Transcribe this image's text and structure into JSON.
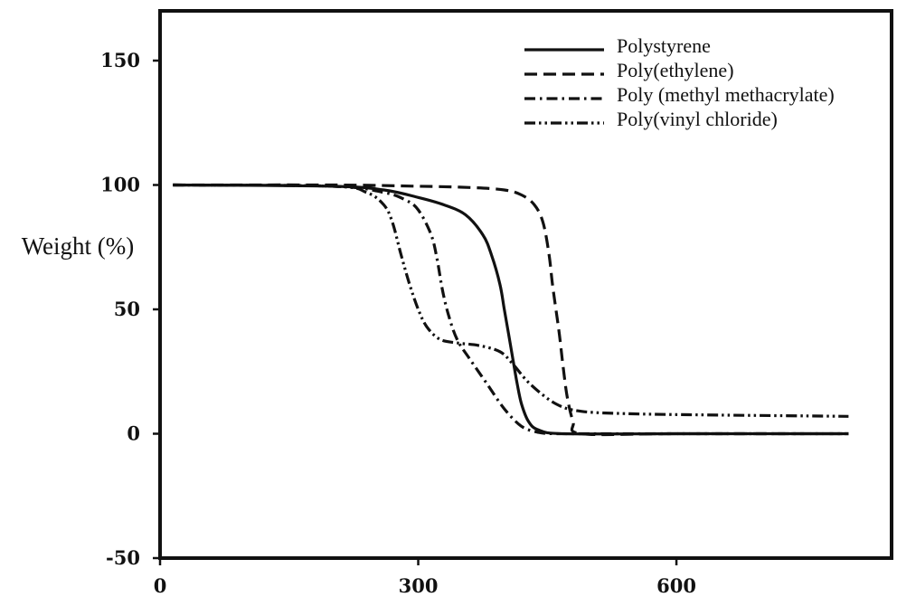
{
  "chart_data": {
    "type": "line",
    "title": "",
    "xlabel": "",
    "ylabel": "Weight (%)",
    "xlim": [
      0,
      850
    ],
    "ylim": [
      -50,
      170
    ],
    "x_ticks": [
      {
        "value": 0,
        "label": "0"
      },
      {
        "value": 300,
        "label": "300"
      },
      {
        "value": 600,
        "label": "600"
      }
    ],
    "y_ticks": [
      {
        "value": -50,
        "label": "-50"
      },
      {
        "value": 0,
        "label": "0"
      },
      {
        "value": 50,
        "label": "50"
      },
      {
        "value": 100,
        "label": "100"
      },
      {
        "value": 150,
        "label": "150"
      }
    ],
    "grid": false,
    "legend_position": "top-right",
    "series": [
      {
        "name": "Polystyrene",
        "style": "solid",
        "color": "#111111",
        "x": [
          15,
          200,
          260,
          300,
          330,
          355,
          375,
          385,
          395,
          400,
          405,
          410,
          415,
          420,
          428,
          440,
          470,
          600,
          800
        ],
        "y": [
          100,
          99.5,
          98,
          95,
          92,
          88,
          80,
          72,
          60,
          50,
          40,
          30,
          20,
          12,
          5,
          1.5,
          0,
          0,
          0
        ]
      },
      {
        "name": "Poly(ethylene)",
        "style": "dashed",
        "color": "#111111",
        "x": [
          15,
          200,
          300,
          360,
          400,
          420,
          435,
          445,
          452,
          456,
          460,
          464,
          468,
          473,
          480,
          490,
          600,
          800
        ],
        "y": [
          100,
          100,
          99.5,
          99,
          98,
          96,
          92,
          85,
          72,
          60,
          50,
          40,
          28,
          15,
          5,
          0,
          0,
          0
        ]
      },
      {
        "name": "Poly (methyl methacrylate)",
        "style": "dash-dot",
        "color": "#111111",
        "x": [
          15,
          200,
          260,
          285,
          300,
          315,
          322,
          328,
          335,
          345,
          360,
          380,
          400,
          420,
          440,
          460,
          490,
          600,
          800
        ],
        "y": [
          100,
          99.5,
          97,
          94,
          90,
          80,
          70,
          58,
          48,
          38,
          30,
          20,
          10,
          3,
          0.5,
          0,
          0,
          0,
          0
        ]
      },
      {
        "name": "Poly(vinyl chloride)",
        "style": "dash-dot-dot",
        "color": "#111111",
        "x": [
          15,
          200,
          240,
          260,
          270,
          280,
          290,
          300,
          310,
          325,
          345,
          370,
          395,
          410,
          430,
          460,
          490,
          550,
          650,
          800
        ],
        "y": [
          100,
          99.5,
          97,
          92,
          85,
          72,
          60,
          50,
          43,
          38,
          36.5,
          35.5,
          33,
          28,
          20,
          12,
          9,
          8,
          7.5,
          7
        ]
      }
    ]
  }
}
